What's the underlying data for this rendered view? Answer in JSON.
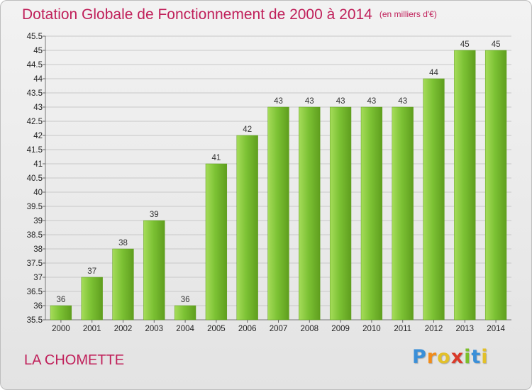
{
  "title": "Dotation Globale de Fonctionnement de 2000 à 2014",
  "unit": "(en milliers d'€)",
  "city": "LA CHOMETTE",
  "logo": {
    "letters": [
      "P",
      "r",
      "o",
      "x",
      "i",
      "t",
      "i"
    ],
    "colors": [
      "#3a8fd8",
      "#f28c1a",
      "#e2c02a",
      "#d93a2a",
      "#7bbf2a",
      "#3a8fd8",
      "#e2c02a"
    ]
  },
  "colors": {
    "bar": "#7cc234",
    "bar_light": "#a6dc5a",
    "bar_dark": "#5f9e1e",
    "title": "#c0205a",
    "grid": "#c8c8c8"
  },
  "chart_data": {
    "type": "bar",
    "title": "Dotation Globale de Fonctionnement de 2000 à 2014",
    "subtitle": "(en milliers d'€)",
    "categories": [
      "2000",
      "2001",
      "2002",
      "2003",
      "2004",
      "2005",
      "2006",
      "2007",
      "2008",
      "2009",
      "2010",
      "2011",
      "2012",
      "2013",
      "2014"
    ],
    "values": [
      36,
      37,
      38,
      39,
      36,
      41,
      42,
      43,
      43,
      43,
      43,
      43,
      44,
      45,
      45
    ],
    "ylim": [
      35.5,
      45.5
    ],
    "ytick_step": 0.5,
    "grid": true,
    "xlabel": "",
    "ylabel": ""
  }
}
